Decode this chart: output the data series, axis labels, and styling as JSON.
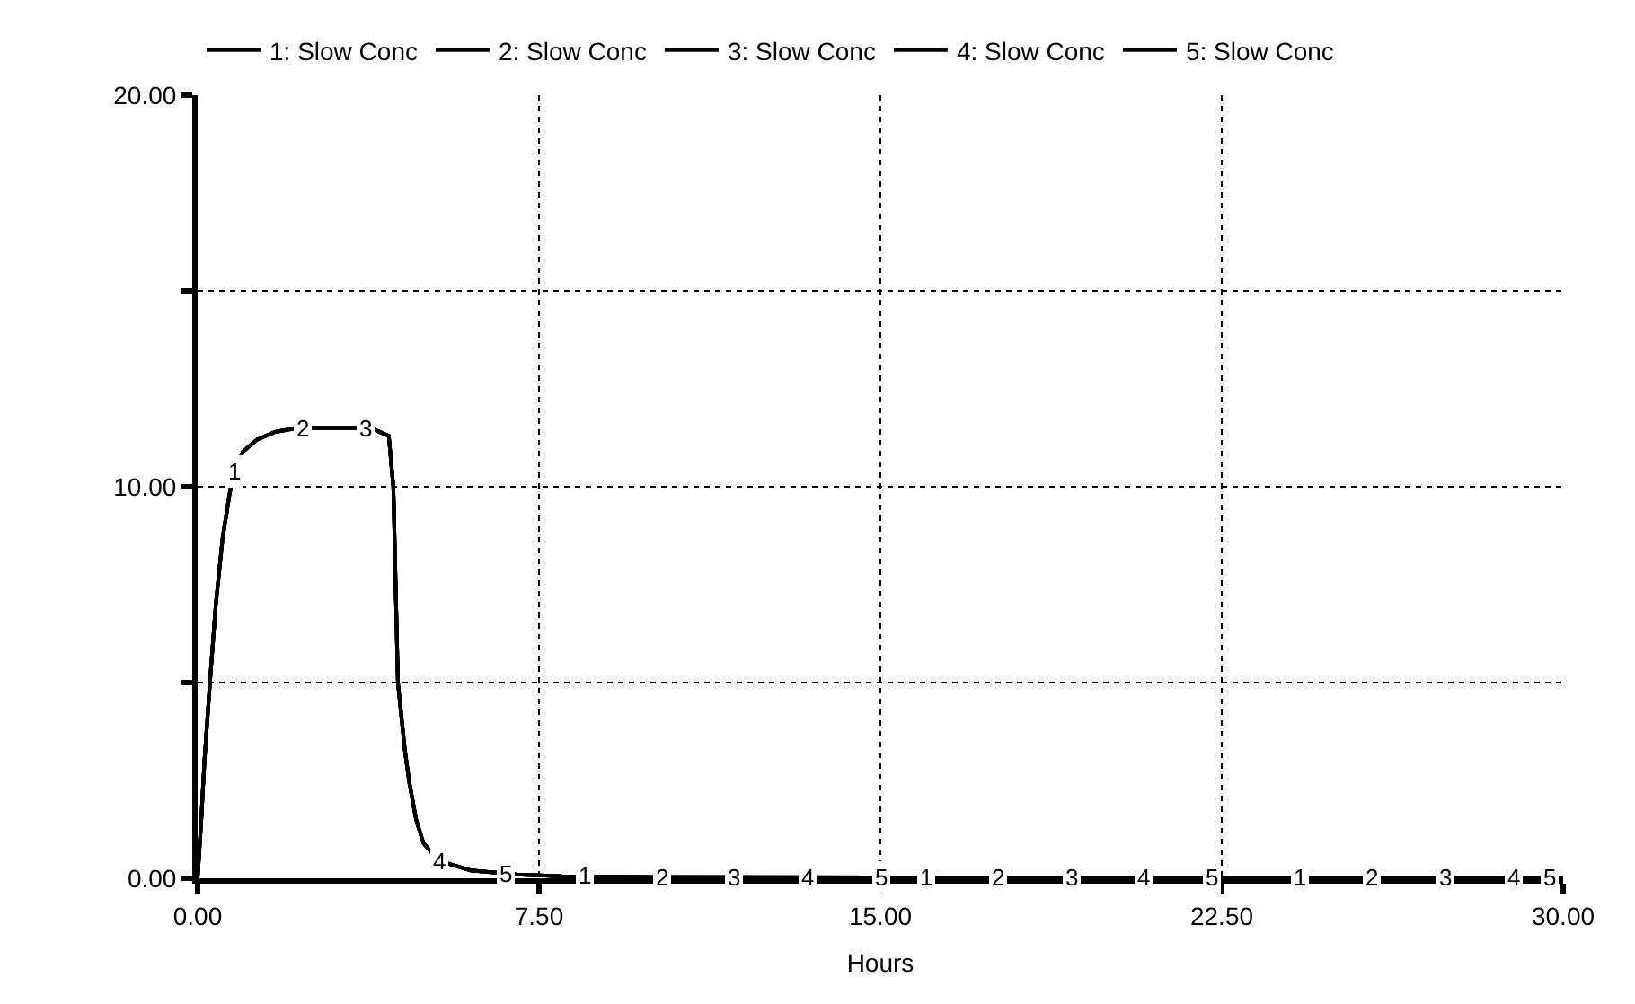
{
  "chart_data": {
    "type": "line",
    "xlabel": "Hours",
    "x": [
      0,
      0.08,
      0.15,
      0.27,
      0.4,
      0.55,
      0.7,
      0.8,
      1.0,
      1.3,
      1.7,
      2.2,
      3.0,
      3.8,
      4.2,
      4.3,
      4.4,
      4.55,
      4.65,
      4.8,
      4.96,
      5.3,
      6.0,
      7.0,
      8.0,
      10,
      15,
      20,
      25,
      30
    ],
    "series": [
      {
        "name": "1: Slow Conc",
        "color": "#000000",
        "values": [
          0,
          1.5,
          3,
          5,
          7,
          8.7,
          9.8,
          10.4,
          10.9,
          11.2,
          11.4,
          11.5,
          11.5,
          11.5,
          11.3,
          10,
          5,
          3.3,
          2.45,
          1.5,
          0.9,
          0.45,
          0.2,
          0.1,
          0.05,
          0.03,
          0.02,
          0.02,
          0.02,
          0.02
        ]
      },
      {
        "name": "2: Slow Conc",
        "color": "#000000",
        "values": [
          0,
          1.5,
          3,
          5,
          7,
          8.7,
          9.8,
          10.4,
          10.9,
          11.2,
          11.4,
          11.5,
          11.5,
          11.5,
          11.3,
          10,
          5,
          3.3,
          2.45,
          1.5,
          0.9,
          0.45,
          0.2,
          0.1,
          0.05,
          0.03,
          0.02,
          0.02,
          0.02,
          0.02
        ]
      },
      {
        "name": "3: Slow Conc",
        "color": "#000000",
        "values": [
          0,
          1.5,
          3,
          5,
          7,
          8.7,
          9.8,
          10.4,
          10.9,
          11.2,
          11.4,
          11.5,
          11.5,
          11.5,
          11.3,
          10,
          5,
          3.3,
          2.45,
          1.5,
          0.9,
          0.45,
          0.2,
          0.1,
          0.05,
          0.03,
          0.02,
          0.02,
          0.02,
          0.02
        ]
      },
      {
        "name": "4: Slow Conc",
        "color": "#000000",
        "values": [
          0,
          1.5,
          3,
          5,
          7,
          8.7,
          9.8,
          10.4,
          10.9,
          11.2,
          11.4,
          11.5,
          11.5,
          11.5,
          11.3,
          10,
          5,
          3.3,
          2.45,
          1.5,
          0.9,
          0.45,
          0.2,
          0.1,
          0.05,
          0.03,
          0.02,
          0.02,
          0.02,
          0.02
        ]
      },
      {
        "name": "5: Slow Conc",
        "color": "#000000",
        "values": [
          0,
          1.5,
          3,
          5,
          7,
          8.7,
          9.8,
          10.4,
          10.9,
          11.2,
          11.4,
          11.5,
          11.5,
          11.5,
          11.3,
          10,
          5,
          3.3,
          2.45,
          1.5,
          0.9,
          0.45,
          0.2,
          0.1,
          0.05,
          0.03,
          0.02,
          0.02,
          0.02,
          0.02
        ]
      }
    ],
    "annotations": [
      {
        "text": "1",
        "x": 0.8,
        "y": 10.4
      },
      {
        "text": "2",
        "x": 2.3,
        "y": 11.5
      },
      {
        "text": "3",
        "x": 3.7,
        "y": 11.5
      },
      {
        "text": "4",
        "x": 5.3,
        "y": 0.45
      },
      {
        "text": "5",
        "x": 6.75,
        "y": 0.1
      },
      {
        "text": "1",
        "x": 8.5,
        "y": 0.05
      },
      {
        "text": "2",
        "x": 10.2,
        "y": 0.03
      },
      {
        "text": "3",
        "x": 11.8,
        "y": 0.03
      },
      {
        "text": "4",
        "x": 13.4,
        "y": 0.02
      },
      {
        "text": "5",
        "x": 15.0,
        "y": 0.02
      },
      {
        "text": "1",
        "x": 16.0,
        "y": 0.02
      },
      {
        "text": "2",
        "x": 17.6,
        "y": 0.02
      },
      {
        "text": "3",
        "x": 19.2,
        "y": 0.02
      },
      {
        "text": "4",
        "x": 20.8,
        "y": 0.02
      },
      {
        "text": "5",
        "x": 22.3,
        "y": 0.02
      },
      {
        "text": "1",
        "x": 24.2,
        "y": 0.02
      },
      {
        "text": "2",
        "x": 25.8,
        "y": 0.02
      },
      {
        "text": "3",
        "x": 27.4,
        "y": 0.02
      },
      {
        "text": "4",
        "x": 28.9,
        "y": 0.02
      },
      {
        "text": "5",
        "x": 29.7,
        "y": 0.02
      }
    ],
    "xlim": [
      0,
      30
    ],
    "xticks": [
      {
        "value": 0,
        "label": "0.00"
      },
      {
        "value": 7.5,
        "label": "7.50"
      },
      {
        "value": 15,
        "label": "15.00"
      },
      {
        "value": 22.5,
        "label": "22.50"
      },
      {
        "value": 30,
        "label": "30.00"
      }
    ],
    "ylim": [
      0,
      20
    ],
    "yticks": [
      {
        "value": 0,
        "label": "0.00"
      },
      {
        "value": 5,
        "label": null
      },
      {
        "value": 10,
        "label": "10.00"
      },
      {
        "value": 15,
        "label": null
      },
      {
        "value": 20,
        "label": "20.00"
      }
    ],
    "grid": true,
    "legend": "top",
    "line_style": "solid",
    "marker": "none"
  }
}
